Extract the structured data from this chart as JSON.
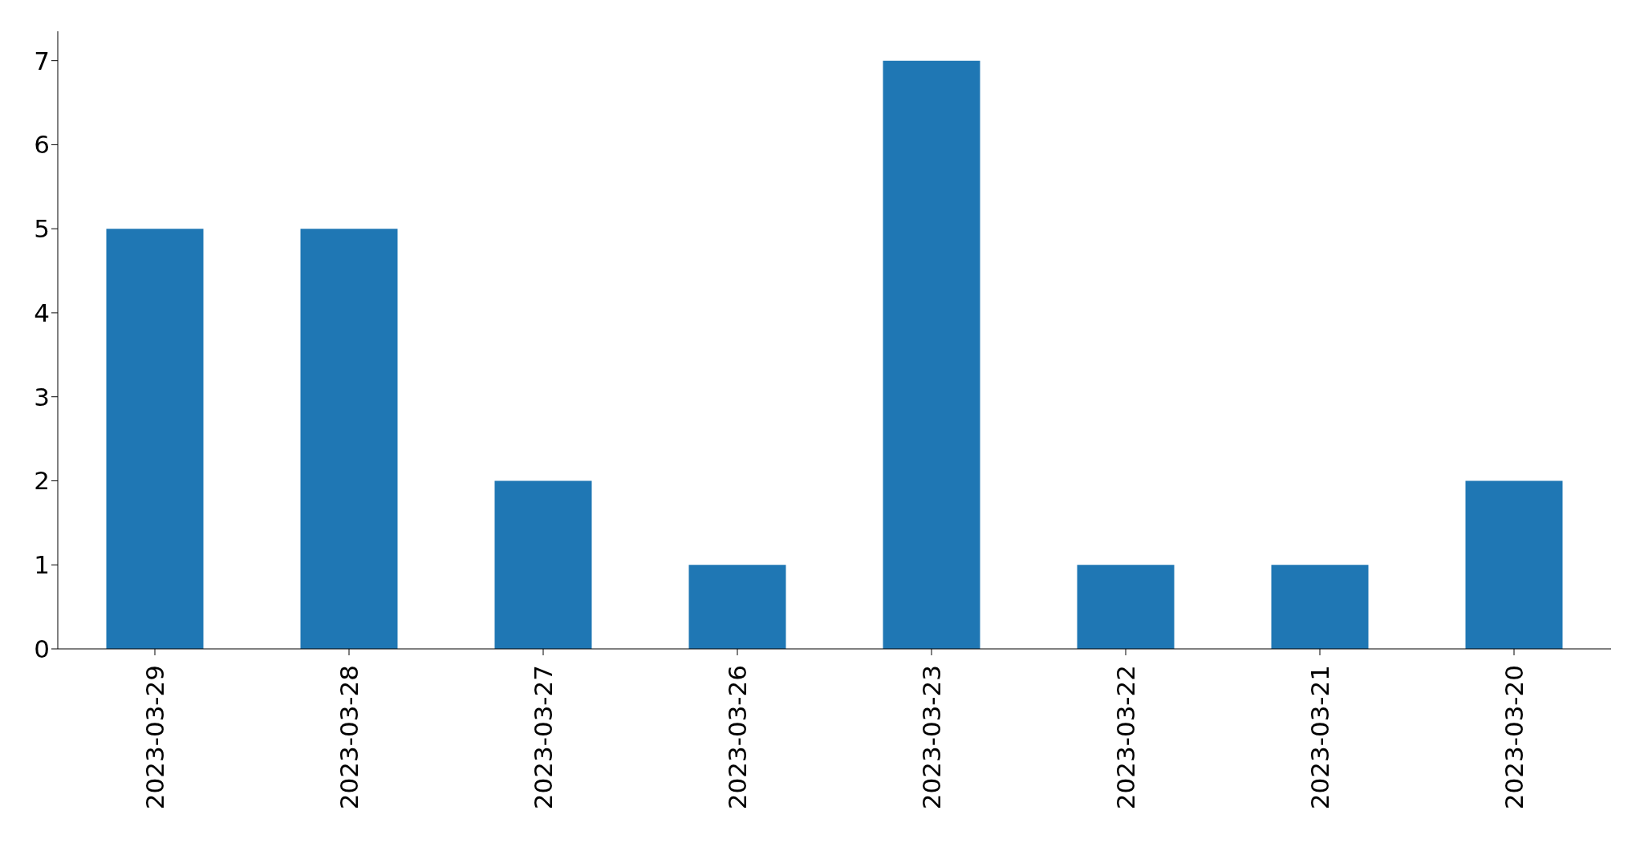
{
  "chart_data": {
    "type": "bar",
    "categories": [
      "2023-03-29",
      "2023-03-28",
      "2023-03-27",
      "2023-03-26",
      "2023-03-23",
      "2023-03-22",
      "2023-03-21",
      "2023-03-20"
    ],
    "values": [
      5,
      5,
      2,
      1,
      7,
      1,
      1,
      2
    ],
    "color": "#1f77b4",
    "ylim": [
      0,
      7.35
    ],
    "yticks": [
      0,
      1,
      2,
      3,
      4,
      5,
      6,
      7
    ],
    "grid": false
  }
}
